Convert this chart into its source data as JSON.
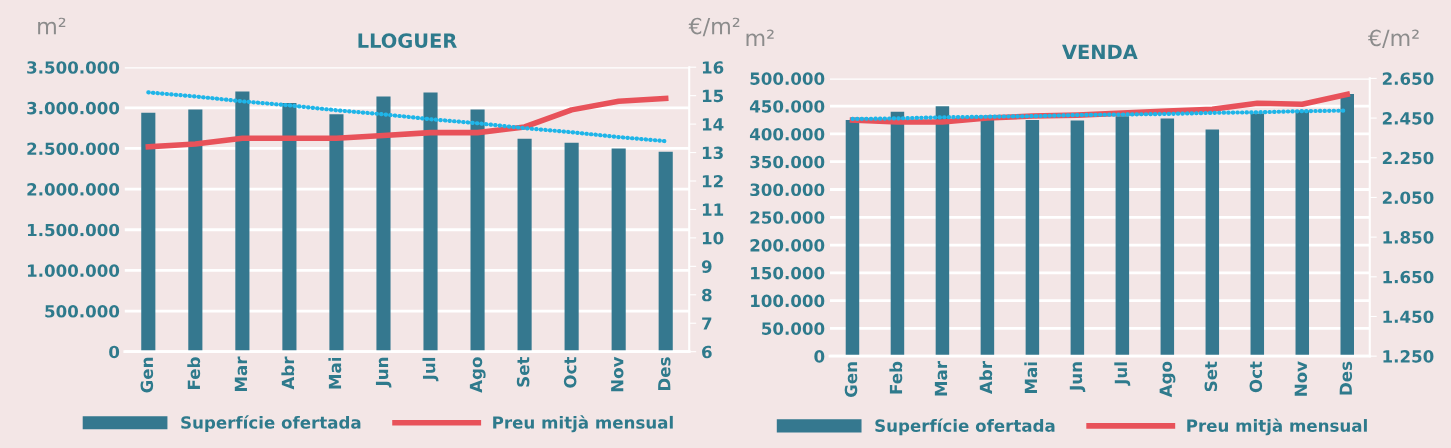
{
  "chart_data": [
    {
      "type": "bar",
      "title": "LLOGUER",
      "ylabel": "m²",
      "y2label": "€/m²",
      "categories": [
        "Gen",
        "Feb",
        "Mar",
        "Abr",
        "Mai",
        "Jun",
        "Jul",
        "Ago",
        "Set",
        "Oct",
        "Nov",
        "Des"
      ],
      "series": [
        {
          "name": "Superfície ofertada",
          "color": "#35788f",
          "values": [
            2940000,
            2980000,
            3200000,
            3060000,
            2920000,
            3140000,
            3190000,
            2980000,
            2620000,
            2570000,
            2500000,
            2460000
          ]
        },
        {
          "name": "Preu mitjà mensual",
          "type": "line",
          "axis": "y2",
          "color": "#e8525a",
          "values": [
            13.2,
            13.3,
            13.5,
            13.5,
            13.5,
            13.6,
            13.7,
            13.7,
            13.9,
            14.5,
            14.8,
            14.9
          ]
        },
        {
          "type": "line",
          "line_style": "dotted",
          "color": "#1fb5e8",
          "values": [
            3190000,
            3140000,
            3080000,
            3030000,
            2970000,
            2920000,
            2860000,
            2810000,
            2750000,
            2700000,
            2640000,
            2590000
          ]
        }
      ],
      "ylim": [
        0,
        3500000
      ],
      "yticks": [
        {
          "value": 0,
          "label": "0"
        },
        {
          "value": 500000,
          "label": "500.000"
        },
        {
          "value": 1000000,
          "label": "1.000.000"
        },
        {
          "value": 1500000,
          "label": "1.500.000"
        },
        {
          "value": 2000000,
          "label": "2.000.000"
        },
        {
          "value": 2500000,
          "label": "2.500.000"
        },
        {
          "value": 3000000,
          "label": "3.000.000"
        },
        {
          "value": 3500000,
          "label": "3.500.000"
        }
      ],
      "y2lim": [
        6,
        16
      ],
      "y2ticks": [
        6,
        7,
        8,
        9,
        10,
        11,
        12,
        13,
        14,
        15,
        16
      ],
      "grid": "y",
      "legend": "bottom"
    },
    {
      "type": "bar",
      "title": "VENDA",
      "ylabel": "m²",
      "y2label": "€/m²",
      "categories": [
        "Gen",
        "Feb",
        "Mar",
        "Abr",
        "Mai",
        "Jun",
        "Jul",
        "Ago",
        "Set",
        "Oct",
        "Nov",
        "Des"
      ],
      "series": [
        {
          "name": "Superfície ofertada",
          "color": "#35788f",
          "values": [
            425000,
            440000,
            450000,
            430000,
            425000,
            424000,
            432000,
            428000,
            408000,
            437000,
            442000,
            472000
          ]
        },
        {
          "name": "Preu mitjà mensual",
          "type": "line",
          "axis": "y2",
          "color": "#e8525a",
          "values": [
            2440,
            2430,
            2430,
            2450,
            2460,
            2465,
            2475,
            2485,
            2495,
            2525,
            2520,
            2570
          ]
        },
        {
          "type": "line",
          "line_style": "dotted",
          "color": "#1fb5e8",
          "values": [
            427000,
            428000,
            430000,
            431000,
            432000,
            434000,
            435000,
            436000,
            438000,
            439000,
            441000,
            442000
          ]
        }
      ],
      "ylim": [
        0,
        500000
      ],
      "yticks": [
        {
          "value": 0,
          "label": "0"
        },
        {
          "value": 50000,
          "label": "50.000"
        },
        {
          "value": 100000,
          "label": "100.000"
        },
        {
          "value": 150000,
          "label": "150.000"
        },
        {
          "value": 200000,
          "label": "200.000"
        },
        {
          "value": 250000,
          "label": "250.000"
        },
        {
          "value": 300000,
          "label": "300.000"
        },
        {
          "value": 350000,
          "label": "350.000"
        },
        {
          "value": 400000,
          "label": "400.000"
        },
        {
          "value": 450000,
          "label": "450.000"
        },
        {
          "value": 500000,
          "label": "500.000"
        }
      ],
      "y2lim": [
        1250,
        2650
      ],
      "y2ticks": [
        {
          "value": 1250,
          "label": "1.250"
        },
        {
          "value": 1450,
          "label": "1.450"
        },
        {
          "value": 1650,
          "label": "1.650"
        },
        {
          "value": 1850,
          "label": "1.850"
        },
        {
          "value": 2050,
          "label": "2.050"
        },
        {
          "value": 2250,
          "label": "2.250"
        },
        {
          "value": 2450,
          "label": "2.450"
        },
        {
          "value": 2650,
          "label": "2.650"
        }
      ],
      "grid": "y",
      "legend": "bottom"
    }
  ]
}
